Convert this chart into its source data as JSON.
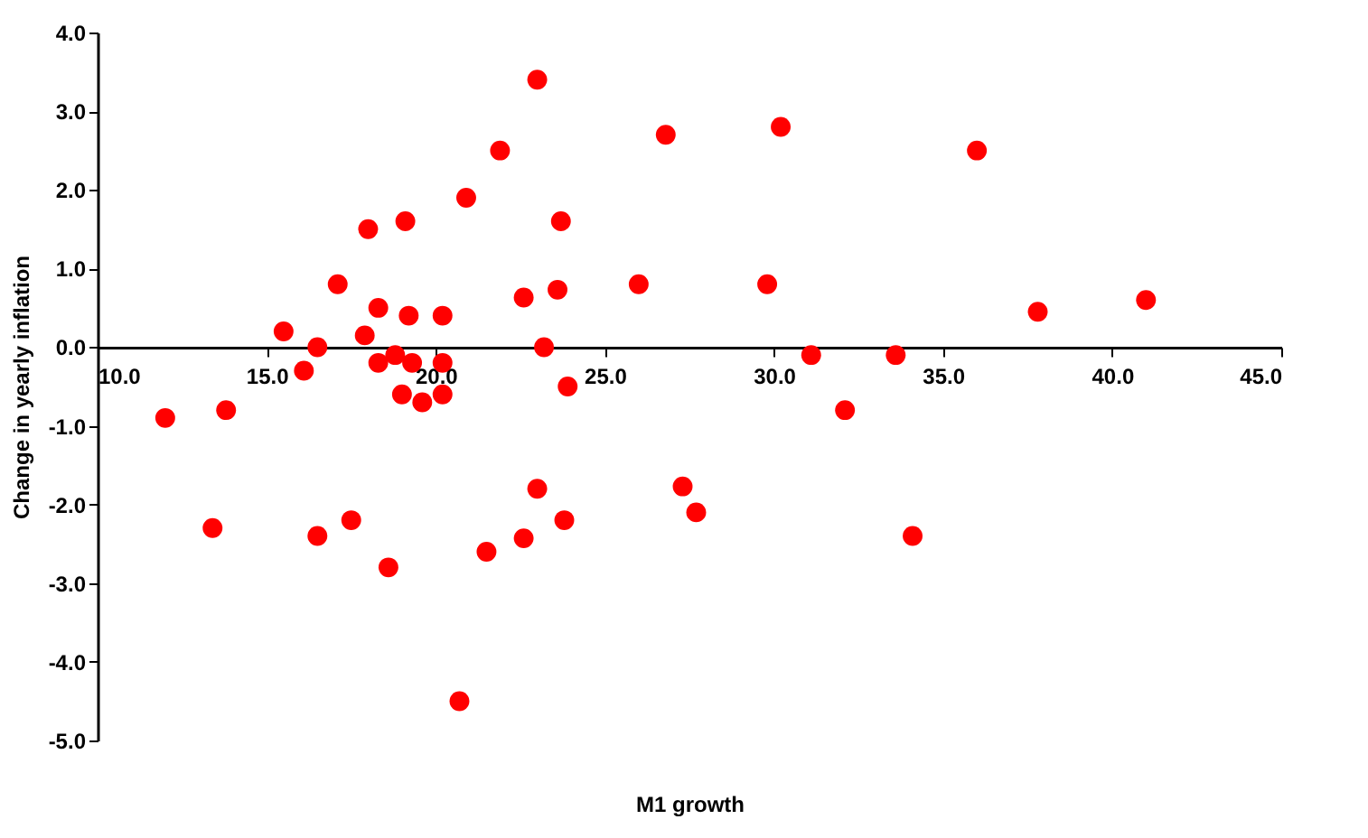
{
  "chart_data": {
    "type": "scatter",
    "xlabel": "M1 growth",
    "ylabel": "Change in yearly inflation",
    "xlim": [
      10,
      45
    ],
    "xticks": [
      {
        "value": 10,
        "label": "10.0"
      },
      {
        "value": 15,
        "label": "15.0"
      },
      {
        "value": 20,
        "label": "20.0"
      },
      {
        "value": 25,
        "label": "25.0"
      },
      {
        "value": 30,
        "label": "30.0"
      },
      {
        "value": 35,
        "label": "35.0"
      },
      {
        "value": 40,
        "label": "40.0"
      },
      {
        "value": 45,
        "label": "45.0"
      }
    ],
    "ylim": [
      -5,
      4
    ],
    "yticks": [
      {
        "value": -5,
        "label": "-5.0"
      },
      {
        "value": -4,
        "label": "-4.0"
      },
      {
        "value": -3,
        "label": "-3.0"
      },
      {
        "value": -2,
        "label": "-2.0"
      },
      {
        "value": -1,
        "label": "-1.0"
      },
      {
        "value": 0,
        "label": "0.0"
      },
      {
        "value": 1,
        "label": "1.0"
      },
      {
        "value": 2,
        "label": "2.0"
      },
      {
        "value": 3,
        "label": "3.0"
      },
      {
        "value": 4,
        "label": "4.0"
      }
    ],
    "grid": false,
    "legend": false,
    "series": [
      {
        "color": "#ff0000",
        "x": [
          12.0,
          13.4,
          13.8,
          15.5,
          16.1,
          16.5,
          16.5,
          17.1,
          17.5,
          17.9,
          18.0,
          18.3,
          18.3,
          18.6,
          18.8,
          19.0,
          19.1,
          19.2,
          19.3,
          19.6,
          20.2,
          20.2,
          20.2,
          20.7,
          20.9,
          21.5,
          21.9,
          22.6,
          22.6,
          23.0,
          23.0,
          23.2,
          23.6,
          23.7,
          23.8,
          23.9,
          26.0,
          26.8,
          27.3,
          27.7,
          29.8,
          30.2,
          31.1,
          32.1,
          33.6,
          34.1,
          36.0,
          37.8,
          41.0
        ],
        "values": [
          -0.9,
          -2.3,
          -0.8,
          0.2,
          -0.3,
          0.0,
          -2.4,
          0.8,
          -2.2,
          0.15,
          1.5,
          0.5,
          -0.2,
          -2.8,
          -0.1,
          -0.6,
          1.6,
          0.4,
          -0.2,
          -0.7,
          0.4,
          -0.2,
          -0.6,
          -4.5,
          1.9,
          -2.6,
          2.5,
          0.63,
          -2.43,
          3.4,
          -1.8,
          0.0,
          0.73,
          1.6,
          -2.2,
          -0.5,
          0.8,
          2.7,
          -1.77,
          -2.1,
          0.8,
          2.8,
          -0.1,
          -0.8,
          -0.1,
          -2.4,
          2.5,
          0.45,
          0.6
        ]
      }
    ]
  }
}
